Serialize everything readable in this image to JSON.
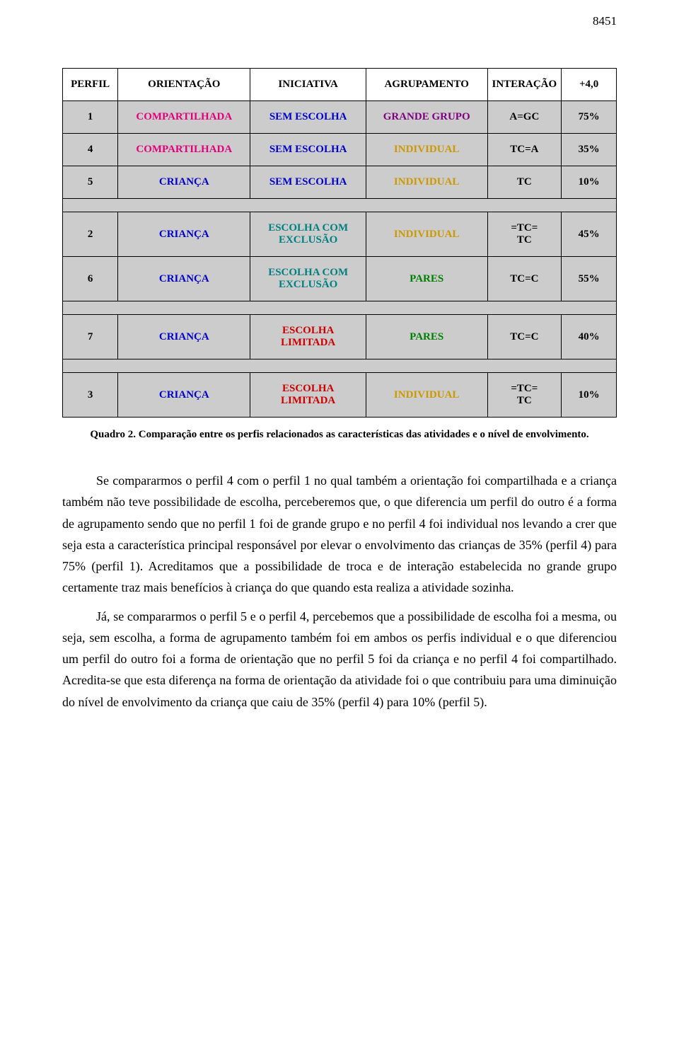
{
  "page_number": "8451",
  "table": {
    "headers": [
      "PERFIL",
      "ORIENTAÇÃO",
      "INICIATIVA",
      "AGRUPAMENTO",
      "INTERAÇÃO",
      "+4,0"
    ],
    "header_colors": [
      "#000000",
      "#000000",
      "#000000",
      "#000000",
      "#000000",
      "#000000"
    ],
    "rows": [
      {
        "cells": [
          "1",
          "COMPARTILHADA",
          "SEM ESCOLHA",
          "GRANDE GRUPO",
          "A=GC",
          "75%"
        ],
        "colors": [
          "#000000",
          "#e2007a",
          "#0000cc",
          "#800080",
          "#000000",
          "#000000"
        ]
      },
      {
        "cells": [
          "4",
          "COMPARTILHADA",
          "SEM ESCOLHA",
          "INDIVIDUAL",
          "TC=A",
          "35%"
        ],
        "colors": [
          "#000000",
          "#e2007a",
          "#0000cc",
          "#cc9900",
          "#000000",
          "#000000"
        ]
      },
      {
        "cells": [
          "5",
          "CRIANÇA",
          "SEM ESCOLHA",
          "INDIVIDUAL",
          "TC",
          "10%"
        ],
        "colors": [
          "#000000",
          "#0000cc",
          "#0000cc",
          "#cc9900",
          "#000000",
          "#000000"
        ]
      },
      {
        "blank": true
      },
      {
        "cells": [
          "2",
          "CRIANÇA",
          "ESCOLHA COM EXCLUSÃO",
          "INDIVIDUAL",
          "=TC=\nTC",
          "45%"
        ],
        "colors": [
          "#000000",
          "#0000cc",
          "#008080",
          "#cc9900",
          "#000000",
          "#000000"
        ]
      },
      {
        "cells": [
          "6",
          "CRIANÇA",
          "ESCOLHA COM EXCLUSÃO",
          "PARES",
          "TC=C",
          "55%"
        ],
        "colors": [
          "#000000",
          "#0000cc",
          "#008080",
          "#008000",
          "#000000",
          "#000000"
        ]
      },
      {
        "blank": true
      },
      {
        "cells": [
          "7",
          "CRIANÇA",
          "ESCOLHA LIMITADA",
          "PARES",
          "TC=C",
          "40%"
        ],
        "colors": [
          "#000000",
          "#0000cc",
          "#cc0000",
          "#008000",
          "#000000",
          "#000000"
        ]
      },
      {
        "blank": true
      },
      {
        "cells": [
          "3",
          "CRIANÇA",
          "ESCOLHA LIMITADA",
          "INDIVIDUAL",
          "=TC=\nTC",
          "10%"
        ],
        "colors": [
          "#000000",
          "#0000cc",
          "#cc0000",
          "#cc9900",
          "#000000",
          "#000000"
        ]
      }
    ],
    "column_widths": [
      "10%",
      "24%",
      "21%",
      "22%",
      "13%",
      "10%"
    ]
  },
  "caption": "Quadro 2. Comparação entre os perfis relacionados as características das atividades e o nível de envolvimento.",
  "paragraphs": [
    "Se compararmos o perfil 4 com o perfil 1 no qual também a orientação foi compartilhada e a criança também não teve possibilidade de escolha, perceberemos que, o que diferencia um perfil do outro é a forma de agrupamento sendo que no perfil 1 foi de grande grupo e no perfil 4 foi individual nos levando a crer que seja esta a característica principal responsável por elevar o envolvimento das crianças de 35% (perfil 4) para 75% (perfil 1). Acreditamos que a possibilidade de troca e de interação estabelecida no grande grupo certamente traz mais benefícios à criança do que quando esta realiza a atividade sozinha.",
    "Já, se compararmos o perfil 5 e o perfil 4, percebemos que a possibilidade de escolha foi a mesma, ou seja, sem escolha, a forma de agrupamento também foi em ambos os perfis individual e o que diferenciou um perfil do outro foi a forma de orientação que no perfil 5 foi da criança e no perfil 4 foi compartilhado. Acredita-se que esta diferença na forma de orientação da atividade foi o que contribuiu para uma diminuição do nível de envolvimento da criança que caiu de 35% (perfil 4) para 10% (perfil 5)."
  ]
}
